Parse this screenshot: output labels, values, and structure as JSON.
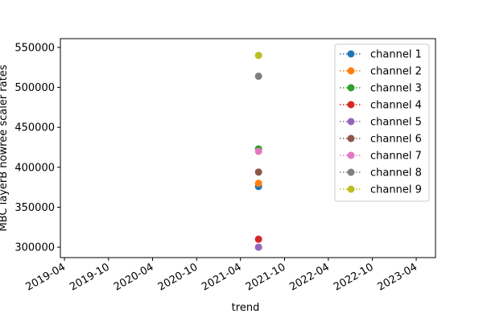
{
  "chart_data": {
    "type": "scatter",
    "title": "",
    "xlabel": "trend",
    "ylabel": "MBC layerB nowree scaler rates",
    "x_ticks": [
      "2019-04",
      "2019-10",
      "2020-04",
      "2020-10",
      "2021-04",
      "2021-10",
      "2022-04",
      "2022-10",
      "2023-04"
    ],
    "xlim": [
      "2019-03-15",
      "2023-06-20"
    ],
    "y_ticks": [
      "300000",
      "350000",
      "400000",
      "450000",
      "500000",
      "550000"
    ],
    "ylim": [
      287000,
      561000
    ],
    "grid": false,
    "legend_position": "top-right",
    "series": [
      {
        "name": "channel 1",
        "color": "#1f77b4",
        "points": [
          {
            "x": "2021-06-15",
            "y": 376000
          }
        ]
      },
      {
        "name": "channel 2",
        "color": "#ff7f0e",
        "points": [
          {
            "x": "2021-06-15",
            "y": 380000
          }
        ]
      },
      {
        "name": "channel 3",
        "color": "#2ca02c",
        "points": [
          {
            "x": "2021-06-15",
            "y": 423000
          }
        ]
      },
      {
        "name": "channel 4",
        "color": "#d62728",
        "points": [
          {
            "x": "2021-06-15",
            "y": 310000
          }
        ]
      },
      {
        "name": "channel 5",
        "color": "#9467bd",
        "points": [
          {
            "x": "2021-06-15",
            "y": 300000
          }
        ]
      },
      {
        "name": "channel 6",
        "color": "#8c564b",
        "points": [
          {
            "x": "2021-06-15",
            "y": 394000
          }
        ]
      },
      {
        "name": "channel 7",
        "color": "#e377c2",
        "points": [
          {
            "x": "2021-06-15",
            "y": 420000
          }
        ]
      },
      {
        "name": "channel 8",
        "color": "#7f7f7f",
        "points": [
          {
            "x": "2021-06-15",
            "y": 514000
          }
        ]
      },
      {
        "name": "channel 9",
        "color": "#bcbd22",
        "points": [
          {
            "x": "2021-06-15",
            "y": 540000
          }
        ]
      }
    ]
  }
}
